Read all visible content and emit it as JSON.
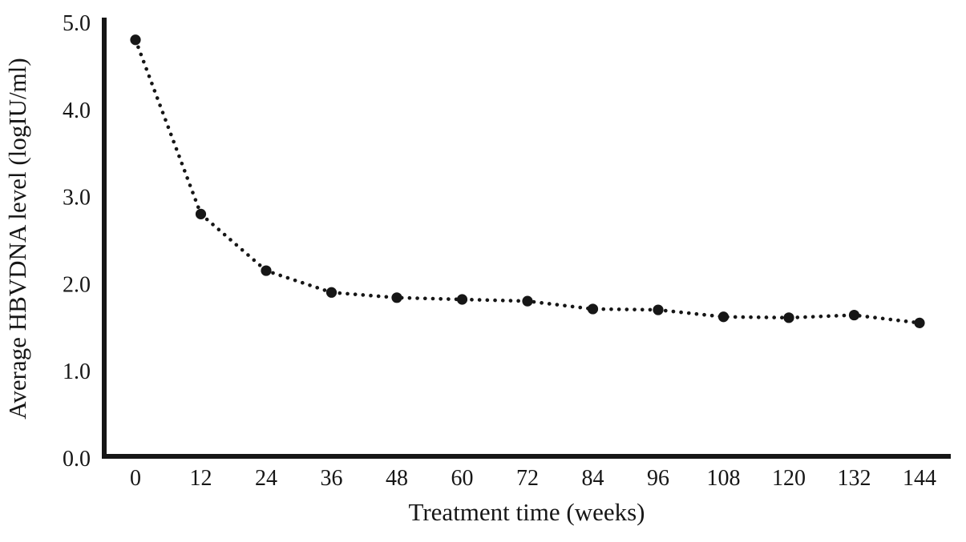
{
  "figure": {
    "background_color": "#ffffff",
    "ink_color": "#161616"
  },
  "chart_data": {
    "type": "line",
    "title": "",
    "xlabel": "Treatment time (weeks)",
    "ylabel": "Average HBVDNA level (logIU/ml)",
    "x": [
      0,
      12,
      24,
      36,
      48,
      60,
      72,
      84,
      96,
      108,
      120,
      132,
      144
    ],
    "series": [
      {
        "name": "Average HBVDNA level",
        "values": [
          4.8,
          2.8,
          2.15,
          1.9,
          1.84,
          1.82,
          1.8,
          1.71,
          1.7,
          1.62,
          1.61,
          1.64,
          1.55
        ]
      }
    ],
    "x_tick_labels": [
      "0",
      "12",
      "24",
      "36",
      "48",
      "60",
      "72",
      "84",
      "96",
      "108",
      "120",
      "132",
      "144"
    ],
    "y_ticks": [
      0.0,
      1.0,
      2.0,
      3.0,
      4.0,
      5.0
    ],
    "y_tick_labels": [
      "0.0",
      "1.0",
      "2.0",
      "3.0",
      "4.0",
      "5.0"
    ],
    "xlim": [
      0,
      144
    ],
    "ylim": [
      0.0,
      5.0
    ],
    "grid": false,
    "legend_position": "none",
    "line_style": "dotted",
    "marker": "filled-circle",
    "line_color": "#161616",
    "marker_color": "#161616"
  }
}
